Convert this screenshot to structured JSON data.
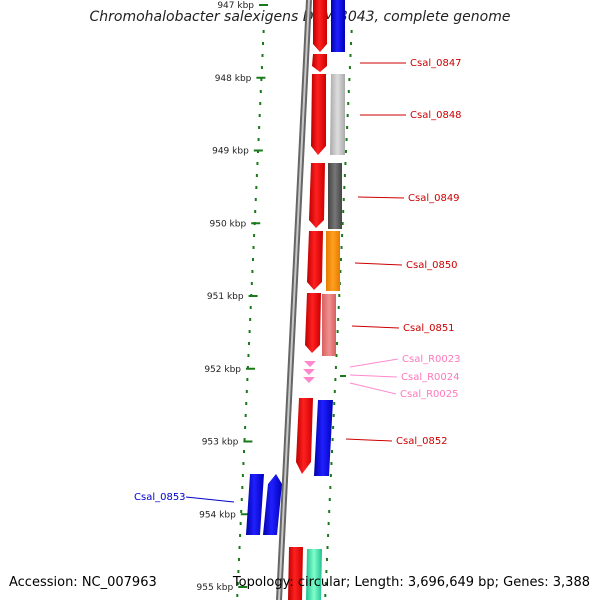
{
  "title": "Chromohalobacter salexigens DSM 3043, complete genome",
  "accession": "Accession: NC_007963",
  "topology": "Topology: circular; Length: 3,696,649 bp; Genes: 3,388",
  "colors": {
    "tick": "#1a7a1a",
    "backbone": "#888888",
    "forward": "#ff0000",
    "reverse_blue": "#0000ff",
    "rna": "#ff88cc",
    "blue_label": "#0000cc",
    "red_label": "#cc0000"
  },
  "scale": {
    "unit": "kbp",
    "ticks": [
      {
        "kbp": 947,
        "label": "947 kbp"
      },
      {
        "kbp": 948,
        "label": "948 kbp"
      },
      {
        "kbp": 949,
        "label": "949 kbp"
      },
      {
        "kbp": 950,
        "label": "950 kbp"
      },
      {
        "kbp": 951,
        "label": "951 kbp"
      },
      {
        "kbp": 952,
        "label": "952 kbp"
      },
      {
        "kbp": 953,
        "label": "953 kbp"
      },
      {
        "kbp": 954,
        "label": "954 kbp"
      },
      {
        "kbp": 955,
        "label": "955 kbp"
      }
    ]
  },
  "genes": [
    {
      "label": "Csal_0847",
      "type": "gene",
      "color": "#cc0000"
    },
    {
      "label": "Csal_0848",
      "type": "gene",
      "color": "#cc0000"
    },
    {
      "label": "Csal_0849",
      "type": "gene",
      "color": "#cc0000"
    },
    {
      "label": "Csal_0850",
      "type": "gene",
      "color": "#cc0000"
    },
    {
      "label": "Csal_0851",
      "type": "gene",
      "color": "#cc0000"
    },
    {
      "label": "Csal_R0023",
      "type": "rna",
      "color": "#ff77bb"
    },
    {
      "label": "Csal_R0024",
      "type": "rna",
      "color": "#ff77bb"
    },
    {
      "label": "Csal_R0025",
      "type": "rna",
      "color": "#ff77bb"
    },
    {
      "label": "Csal_0852",
      "type": "gene",
      "color": "#cc0000"
    },
    {
      "label": "Csal_0853",
      "type": "gene",
      "color": "#0000cc"
    }
  ]
}
